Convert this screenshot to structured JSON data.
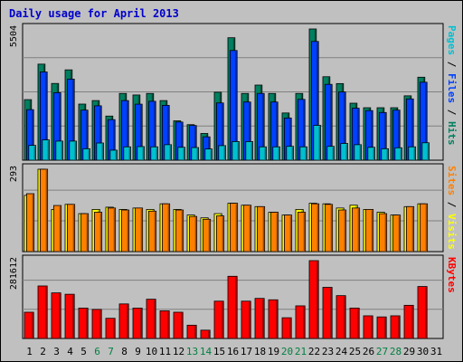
{
  "chart_data": {
    "type": "bar",
    "title": "Daily usage for April 2013",
    "days": [
      "1",
      "2",
      "3",
      "4",
      "5",
      "6",
      "7",
      "8",
      "9",
      "10",
      "11",
      "12",
      "13",
      "14",
      "15",
      "16",
      "17",
      "18",
      "19",
      "20",
      "21",
      "22",
      "23",
      "24",
      "25",
      "26",
      "27",
      "28",
      "29",
      "30",
      "31"
    ],
    "weekend_days": [
      "6",
      "7",
      "13",
      "14",
      "20",
      "21",
      "27",
      "28"
    ],
    "weekend_color": "#008040",
    "weekday_color": "#000000",
    "panels": [
      {
        "name": "hits-files-pages",
        "max_label": "5504",
        "max": 5504,
        "side_labels": [
          {
            "text": "Pages",
            "color": "#00c0d0"
          },
          {
            "text": " / ",
            "color": "#000000"
          },
          {
            "text": "Files",
            "color": "#0040ff"
          },
          {
            "text": " / ",
            "color": "#000000"
          },
          {
            "text": "Hits",
            "color": "#008060"
          }
        ],
        "series": [
          {
            "name": "Hits",
            "color": "#008060",
            "values": [
              2540,
              4028,
              3218,
              3789,
              2353,
              2500,
              1850,
              2800,
              2735,
              2800,
              2500,
              1650,
              1490,
              1120,
              2850,
              5136,
              2800,
              3150,
              2800,
              1980,
              2800,
              5504,
              3500,
              3213,
              2390,
              2200,
              2200,
              2200,
              2700,
              3480
            ]
          },
          {
            "name": "Files",
            "color": "#0040ff",
            "values": [
              2120,
              3700,
              2830,
              3400,
              2100,
              2280,
              1700,
              2500,
              2350,
              2470,
              2300,
              1600,
              1455,
              980,
              2400,
              4600,
              2440,
              2800,
              2440,
              1770,
              2550,
              4980,
              3180,
              2860,
              2180,
              2080,
              2000,
              2100,
              2570,
              3270
            ]
          },
          {
            "name": "Pages",
            "color": "#00c0d0",
            "values": [
              620,
              850,
              800,
              800,
              480,
              720,
              420,
              560,
              570,
              560,
              650,
              540,
              530,
              470,
              610,
              780,
              780,
              560,
              560,
              580,
              560,
              1460,
              580,
              700,
              650,
              540,
              480,
              520,
              560,
              730
            ]
          }
        ]
      },
      {
        "name": "visits-sites",
        "max_label": "293",
        "max": 293,
        "side_labels": [
          {
            "text": "Sites",
            "color": "#ff8000"
          },
          {
            "text": " / ",
            "color": "#000000"
          },
          {
            "text": "Visits",
            "color": "#ffff00"
          }
        ],
        "series": [
          {
            "name": "Visits",
            "color": "#ffff00",
            "values": [
              200,
              293,
              150,
              168,
              135,
              150,
              158,
              150,
              155,
              150,
              170,
              150,
              130,
              120,
              135,
              172,
              165,
              160,
              140,
              130,
              150,
              172,
              170,
              155,
              165,
              150,
              140,
              130,
              160,
              170
            ]
          },
          {
            "name": "Sites",
            "color": "#ff8000",
            "values": [
              206,
              293,
              164,
              168,
              135,
              140,
              155,
              148,
              155,
              144,
              170,
              148,
              125,
              115,
              127,
              172,
              165,
              160,
              140,
              130,
              140,
              170,
              168,
              148,
              155,
              150,
              135,
              130,
              160,
              170
            ]
          }
        ]
      },
      {
        "name": "kbytes",
        "max_label": "281612",
        "max": 281612,
        "side_labels": [
          {
            "text": "KBytes",
            "color": "#ff0000"
          }
        ],
        "series": [
          {
            "name": "KBytes",
            "color": "#ff0000",
            "values": [
              95000,
              190000,
              165000,
              160000,
              110000,
              105000,
              73000,
              125000,
              110000,
              142000,
              100000,
              95000,
              48000,
              30000,
              135000,
              225000,
              135000,
              145000,
              140000,
              75000,
              118000,
              281612,
              185000,
              155000,
              110000,
              82000,
              78000,
              82000,
              120000,
              188000
            ]
          }
        ]
      }
    ]
  }
}
